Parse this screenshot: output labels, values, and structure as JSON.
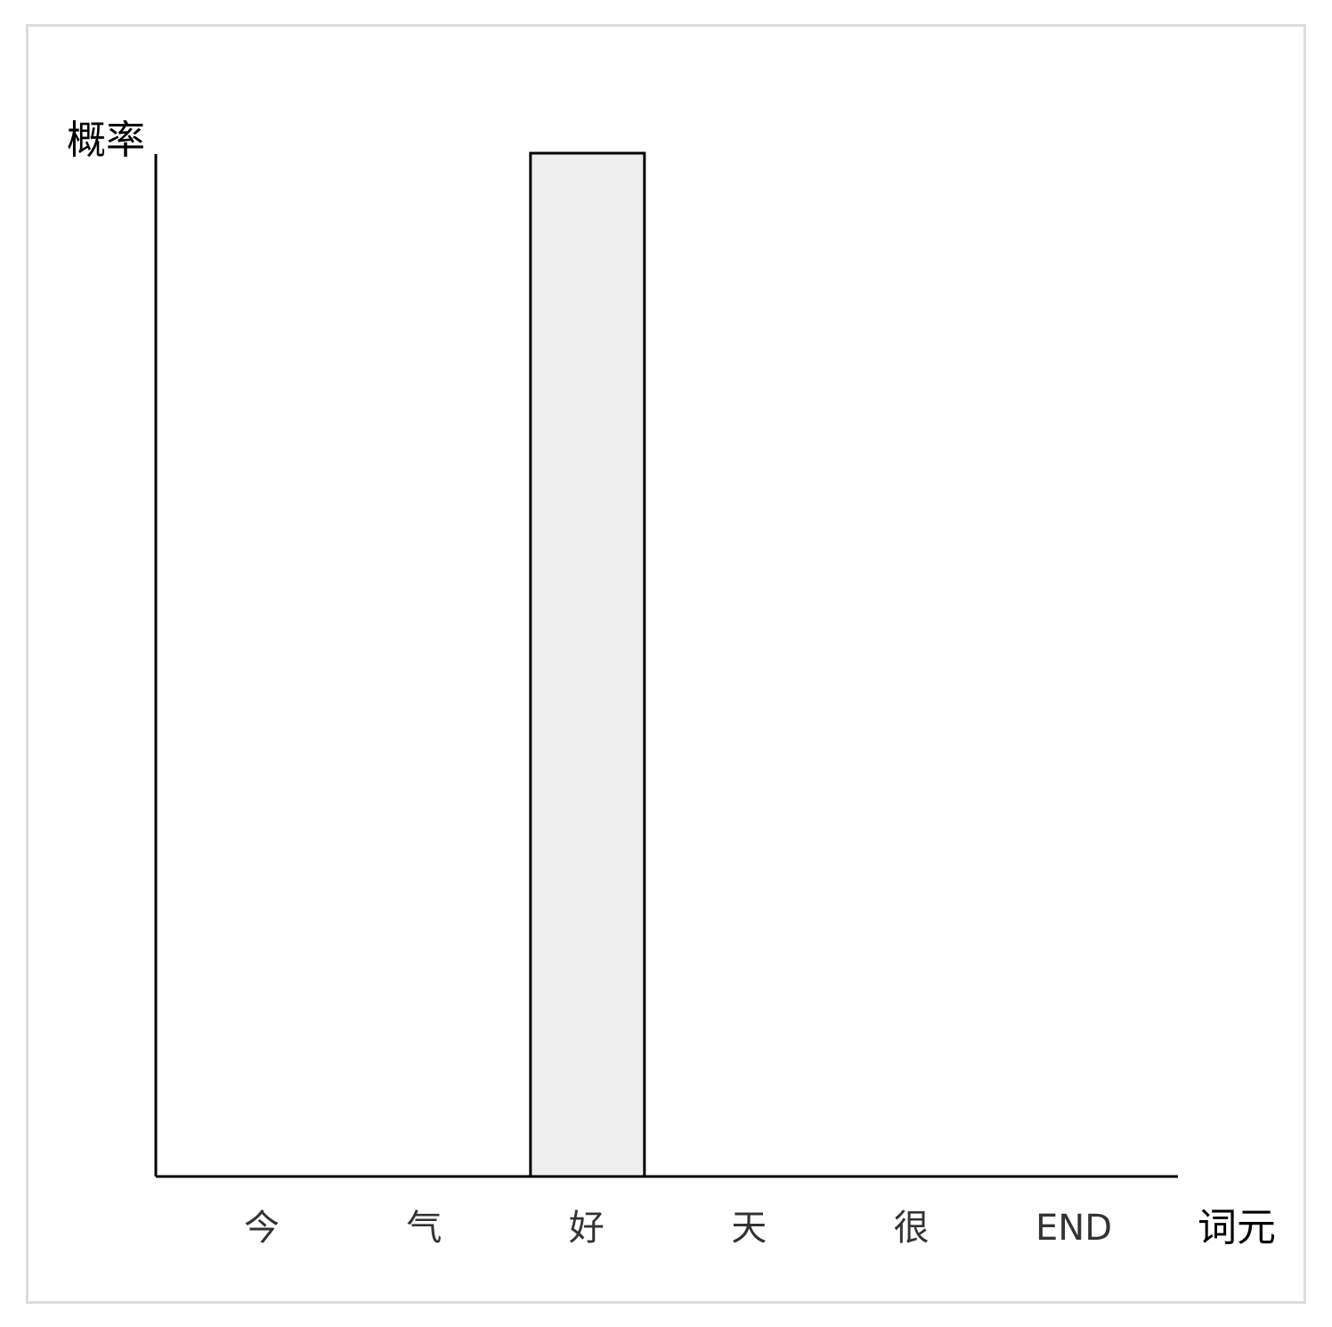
{
  "chart_data": {
    "type": "bar",
    "title": "",
    "xlabel": "词元",
    "ylabel": "概率",
    "categories": [
      "今",
      "气",
      "好",
      "天",
      "很",
      "END"
    ],
    "values": [
      0,
      0,
      1,
      0,
      0,
      0
    ],
    "ylim": [
      0,
      1
    ],
    "grid": false,
    "bar_color": "#eeeeee",
    "bar_stroke": "#000000"
  }
}
